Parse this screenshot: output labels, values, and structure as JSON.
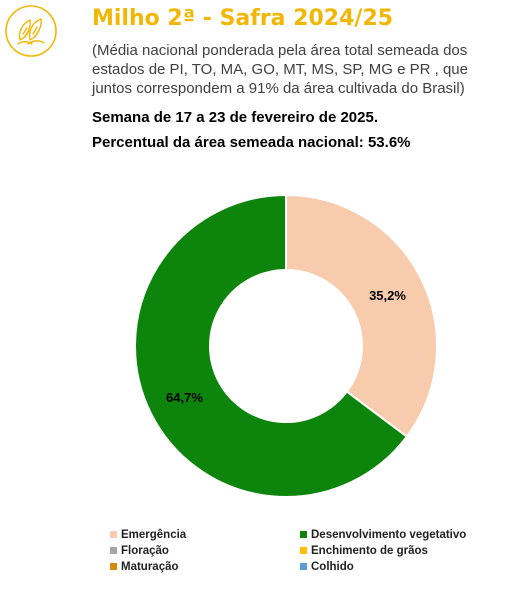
{
  "header": {
    "title": "Milho 2ª - Safra 2024/25",
    "subtitle": "(Média nacional ponderada pela área total semeada dos estados de PI, TO, MA, GO, MT, MS, SP, MG e PR , que juntos correspondem a 91% da área cultivada do Brasil)",
    "week": "Semana de 17 a 23 de fevereiro de 2025.",
    "national_percent": "Percentual da área semeada nacional: 53.6%",
    "logo_icon": "corn-icon",
    "accent": "#f2b705"
  },
  "chart_data": {
    "type": "pie",
    "variant": "donut",
    "categories": [
      "Emergência",
      "Desenvolvimento vegetativo",
      "Floração",
      "Enchimento de grãos",
      "Maturação",
      "Colhido"
    ],
    "values": [
      35.2,
      64.7,
      0,
      0,
      0,
      0
    ],
    "labels": [
      "35,2%",
      "64,7%",
      "",
      "",
      "",
      ""
    ],
    "colors": [
      "#f8cbad",
      "#0d850d",
      "#a5a5a5",
      "#ffc000",
      "#d88a0c",
      "#5b9bd5"
    ],
    "legend": "bottom"
  }
}
